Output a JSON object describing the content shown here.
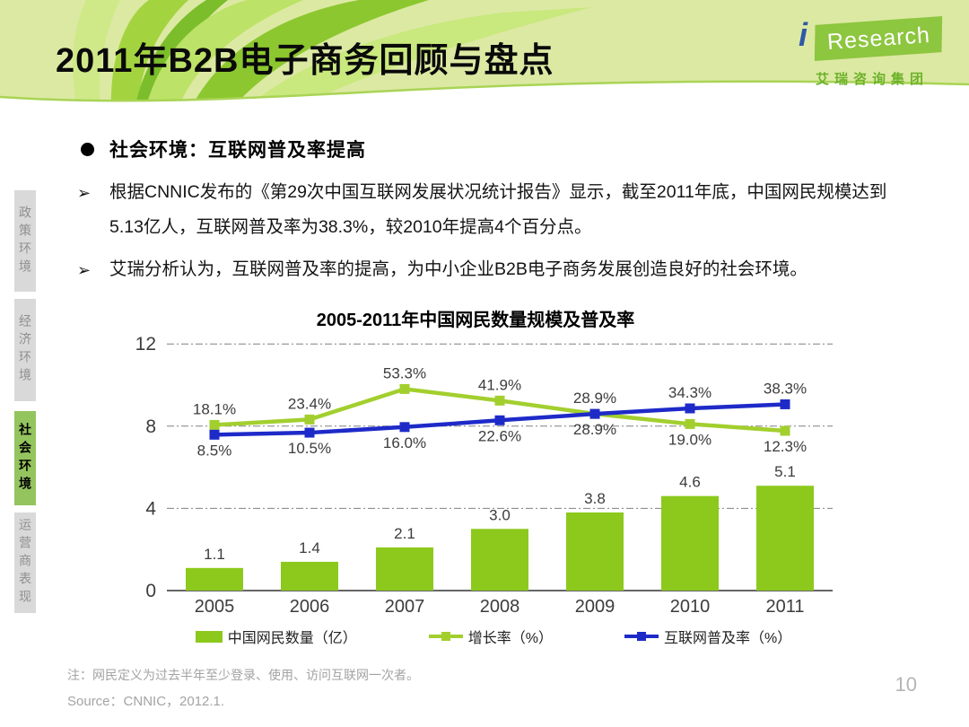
{
  "header": {
    "title": "2011年B2B电子商务回顾与盘点",
    "logo": {
      "i": "i",
      "text": "Research",
      "subtitle": "艾瑞咨询集团"
    }
  },
  "sidebar": {
    "tabs": [
      {
        "label": "政策环境",
        "active": false
      },
      {
        "label": "经济环境",
        "active": false
      },
      {
        "label": "社会环境",
        "active": true
      },
      {
        "label": "运营商表现",
        "active": false
      }
    ]
  },
  "content": {
    "section_heading": "社会环境：互联网普及率提高",
    "bullets": [
      "根据CNNIC发布的《第29次中国互联网发展状况统计报告》显示，截至2011年底，中国网民规模达到5.13亿人，互联网普及率为38.3%，较2010年提高4个百分点。",
      "艾瑞分析认为，互联网普及率的提高，为中小企业B2B电子商务发展创造良好的社会环境。"
    ]
  },
  "chart_data": {
    "type": "combo-bar-line",
    "title": "2005-2011年中国网民数量规模及普及率",
    "categories": [
      "2005",
      "2006",
      "2007",
      "2008",
      "2009",
      "2010",
      "2011"
    ],
    "bar_series": {
      "name": "中国网民数量（亿）",
      "values": [
        1.1,
        1.4,
        2.1,
        3.0,
        3.8,
        4.6,
        5.1
      ],
      "color": "#8cc91c"
    },
    "line_series": [
      {
        "name": "增长率（%）",
        "values": [
          18.1,
          23.4,
          53.3,
          41.9,
          28.9,
          19.0,
          12.3
        ],
        "labels": [
          "18.1%",
          "23.4%",
          "53.3%",
          "41.9%",
          "28.9%",
          "19.0%",
          "12.3%"
        ],
        "label_side": [
          "above",
          "above",
          "above",
          "above",
          "below",
          "below",
          "below"
        ],
        "color": "#a2cf2e"
      },
      {
        "name": "互联网普及率（%）",
        "values": [
          8.5,
          10.5,
          16.0,
          22.6,
          28.9,
          34.3,
          38.3
        ],
        "labels": [
          "8.5%",
          "10.5%",
          "16.0%",
          "22.6%",
          "28.9%",
          "34.3%",
          "38.3%"
        ],
        "label_side": [
          "below",
          "below",
          "below",
          "below",
          "above",
          "above",
          "above"
        ],
        "color": "#1e2ac8"
      }
    ],
    "y_axis": {
      "ticks": [
        0,
        4,
        8,
        12
      ],
      "min": 0,
      "max": 12
    },
    "grid": "horizontal-dashed",
    "legend_position": "bottom"
  },
  "footer": {
    "note": "注：网民定义为过去半年至少登录、使用、访问互联网一次者。",
    "source": "Source：CNNIC，2012.1.",
    "page_number": "10"
  },
  "colors": {
    "banner_background": "#dce9a3",
    "banner_wave_stroke": "#a9d455",
    "logo_green": "#8dc63f",
    "logo_blue": "#2f58a7",
    "sidebar_active": "#94c45e",
    "sidebar_inactive": "#d9d9d9",
    "bar_green": "#8cc91c",
    "line_green": "#a2cf2e",
    "line_blue": "#1e2ac8"
  }
}
